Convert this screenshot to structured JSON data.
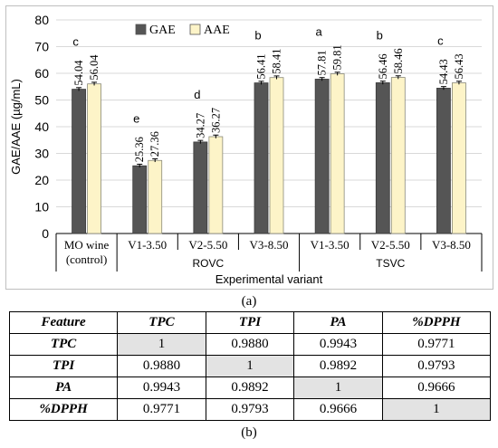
{
  "chart_data": {
    "type": "bar",
    "ylabel": "GAE/AAE (µg/mL)",
    "xlabel": "Experimental variant",
    "ylim": [
      0,
      80
    ],
    "yticks": [
      0,
      10,
      20,
      30,
      40,
      50,
      60,
      70,
      80
    ],
    "categories": [
      "MO wine (control)",
      "V1-3.50",
      "V2-5.50",
      "V3-8.50",
      "V1-3.50",
      "V2-5.50",
      "V3-8.50"
    ],
    "category_lines": [
      [
        "MO wine",
        "(control)"
      ],
      [
        "V1-3.50"
      ],
      [
        "V2-5.50"
      ],
      [
        "V3-8.50"
      ],
      [
        "V1-3.50"
      ],
      [
        "V2-5.50"
      ],
      [
        "V3-8.50"
      ]
    ],
    "groups": [
      {
        "label": "ROVC",
        "from": 1,
        "to": 3
      },
      {
        "label": "TSVC",
        "from": 4,
        "to": 6
      }
    ],
    "series": [
      {
        "name": "GAE",
        "color": "#555555",
        "values": [
          54.04,
          25.36,
          34.27,
          56.41,
          57.81,
          56.46,
          54.43
        ],
        "labels": [
          "54.04",
          "25.36",
          "34.27",
          "56.41",
          "57.81",
          "56.46",
          "54.43"
        ]
      },
      {
        "name": "AAE",
        "color": "#fdf4c8",
        "values": [
          56.04,
          27.36,
          36.27,
          58.41,
          59.81,
          58.46,
          56.43
        ],
        "labels": [
          "56.04",
          "27.36",
          "36.27",
          "58.41",
          "59.81",
          "58.46",
          "56.43"
        ]
      }
    ],
    "significance_letters": [
      "c",
      "e",
      "d",
      "b",
      "a",
      "b",
      "c"
    ],
    "legend_position": "top-left",
    "grid": "horizontal"
  },
  "captions": {
    "a": "(a)",
    "b": "(b)"
  },
  "table": {
    "headers": [
      "Feature",
      "TPC",
      "TPI",
      "PA",
      "%DPPH"
    ],
    "rows": [
      {
        "label": "TPC",
        "cells": [
          "1",
          "0.9880",
          "0.9943",
          "0.9771"
        ]
      },
      {
        "label": "TPI",
        "cells": [
          "0.9880",
          "1",
          "0.9892",
          "0.9793"
        ]
      },
      {
        "label": "PA",
        "cells": [
          "0.9943",
          "0.9892",
          "1",
          "0.9666"
        ]
      },
      {
        "label": "%DPPH",
        "cells": [
          "0.9771",
          "0.9793",
          "0.9666",
          "1"
        ]
      }
    ]
  }
}
